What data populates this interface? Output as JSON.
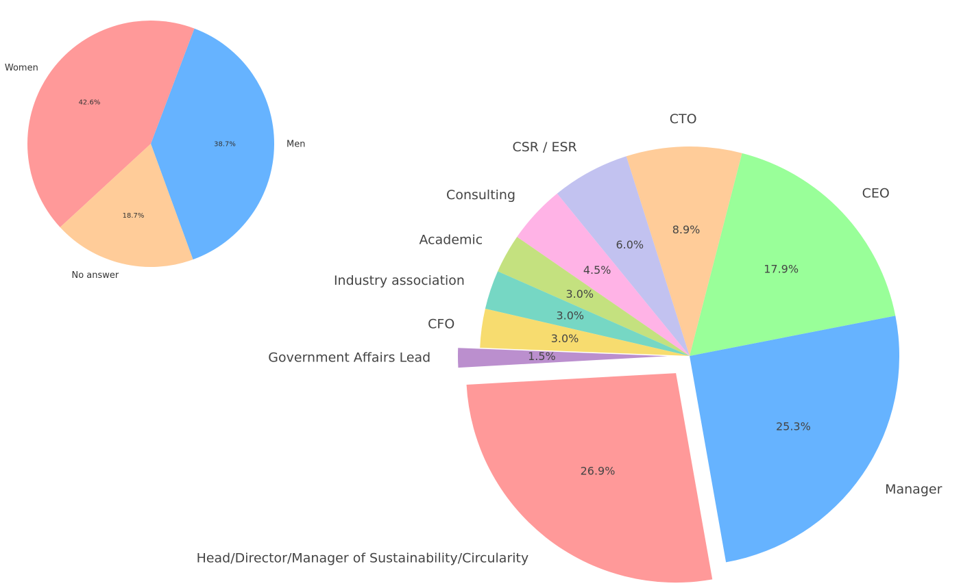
{
  "chart_data": [
    {
      "type": "pie",
      "title": "",
      "slices": [
        {
          "label": "Men",
          "value": 38.7,
          "pct_label": "38.7%",
          "color": "#66b3ff"
        },
        {
          "label": "Women",
          "value": 42.6,
          "pct_label": "42.6%",
          "color": "#ff9999"
        },
        {
          "label": "No answer",
          "value": 18.7,
          "pct_label": "18.7%",
          "color": "#ffcc99"
        }
      ]
    },
    {
      "type": "pie",
      "title": "",
      "exploded_slices": [
        "Head/Director/Manager of Sustainability/Circularity",
        "Government Affairs Lead"
      ],
      "slices": [
        {
          "label": "Manager",
          "value": 25.3,
          "pct_label": "25.3%",
          "color": "#66b3ff"
        },
        {
          "label": "CEO",
          "value": 17.9,
          "pct_label": "17.9%",
          "color": "#99ff99"
        },
        {
          "label": "CTO",
          "value": 8.9,
          "pct_label": "8.9%",
          "color": "#ffcc99"
        },
        {
          "label": "CSR / ESR",
          "value": 6.0,
          "pct_label": "6.0%",
          "color": "#c2c2f0"
        },
        {
          "label": "Consulting",
          "value": 4.5,
          "pct_label": "4.5%",
          "color": "#ffb3e6"
        },
        {
          "label": "Academic",
          "value": 3.0,
          "pct_label": "3.0%",
          "color": "#c4e17f"
        },
        {
          "label": "Industry association",
          "value": 3.0,
          "pct_label": "3.0%",
          "color": "#76d7c4"
        },
        {
          "label": "CFO",
          "value": 3.0,
          "pct_label": "3.0%",
          "color": "#f7dc6f"
        },
        {
          "label": "Government Affairs Lead",
          "value": 1.5,
          "pct_label": "1.5%",
          "color": "#bb8fce"
        },
        {
          "label": "Head/Director/Manager of Sustainability/Circularity",
          "value": 26.9,
          "pct_label": "26.9%",
          "color": "#ff9999"
        }
      ]
    }
  ]
}
